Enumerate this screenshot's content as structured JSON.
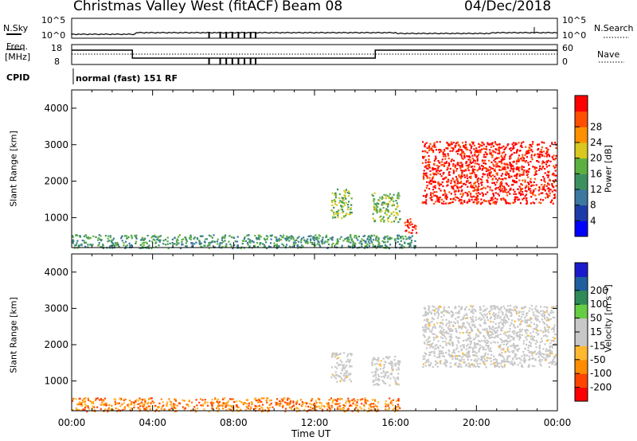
{
  "header": {
    "station_title": "Christmas Valley West (fitACF)",
    "beam": "Beam 08",
    "date": "04/Dec/2018"
  },
  "panels": {
    "nsky": {
      "label": "N.Sky",
      "right_label": "N.Search",
      "left_ticks": [
        "10^5",
        "10^0"
      ],
      "right_ticks": [
        "10^5",
        "10^0"
      ]
    },
    "freq": {
      "label_line1": "Freq.",
      "label_line2": "[MHz]",
      "right_label": "Nave",
      "left_ticks": [
        "18",
        "8"
      ],
      "right_ticks": [
        "60",
        "0"
      ]
    },
    "cpid": {
      "label": "CPID",
      "mode_text": "normal (fast) 151 RF"
    }
  },
  "colors": {
    "power": [
      "#0000ff",
      "#1c3ca8",
      "#3c78a0",
      "#3c9060",
      "#5cb040",
      "#d8c820",
      "#ff9000",
      "#ff5000",
      "#ff0000"
    ],
    "velocity": [
      "#ff0000",
      "#ff4400",
      "#ff8c00",
      "#ffb830",
      "#c8c8c8",
      "#c8c8c8",
      "#66cc44",
      "#2e8b57",
      "#2060a0",
      "#1a1acd"
    ],
    "gray": "#c8c8c8"
  },
  "chart_data": [
    {
      "type": "heatmap",
      "name": "power",
      "ylabel": "Slant Range [km]",
      "colorbar_label": "Power [dB]",
      "colorbar_ticks": [
        "4",
        "8",
        "12",
        "16",
        "20",
        "24",
        "28"
      ],
      "y_ticks": [
        "1000",
        "2000",
        "3000",
        "4000"
      ],
      "x_ticks": [],
      "xlim": [
        0,
        24
      ],
      "ylim": [
        180,
        4500
      ],
      "regions": [
        {
          "x0": 0.0,
          "x1": 17.0,
          "y0": 180,
          "y1": 550,
          "level": 3
        },
        {
          "x0": 12.8,
          "x1": 13.8,
          "y0": 1000,
          "y1": 1800,
          "level": 4
        },
        {
          "x0": 14.8,
          "x1": 16.2,
          "y0": 900,
          "y1": 1700,
          "level": 4
        },
        {
          "x0": 16.4,
          "x1": 17.0,
          "y0": 600,
          "y1": 1000,
          "level": 8
        },
        {
          "x0": 17.3,
          "x1": 23.9,
          "y0": 1400,
          "y1": 3100,
          "level": 8
        }
      ]
    },
    {
      "type": "heatmap",
      "name": "velocity",
      "ylabel": "Slant Range [km]",
      "xlabel": "Time UT",
      "colorbar_label": "Velocity [m s⁻¹]",
      "colorbar_ticks": [
        "-200",
        "-100",
        "-50",
        "-15",
        "15",
        "50",
        "100",
        "200"
      ],
      "y_ticks": [
        "1000",
        "2000",
        "3000",
        "4000"
      ],
      "x_ticks": [
        "00:00",
        "04:00",
        "08:00",
        "12:00",
        "16:00",
        "20:00",
        "00:00"
      ],
      "xlim": [
        0,
        24
      ],
      "ylim": [
        180,
        4500
      ],
      "regions": [
        {
          "x0": 0.0,
          "x1": 16.2,
          "y0": 180,
          "y1": 550,
          "level": 2
        },
        {
          "x0": 12.8,
          "x1": 13.8,
          "y0": 1000,
          "y1": 1800,
          "level": 4
        },
        {
          "x0": 14.8,
          "x1": 16.2,
          "y0": 900,
          "y1": 1700,
          "level": 4
        },
        {
          "x0": 17.3,
          "x1": 23.9,
          "y0": 1400,
          "y1": 3100,
          "level": 4
        }
      ]
    }
  ]
}
